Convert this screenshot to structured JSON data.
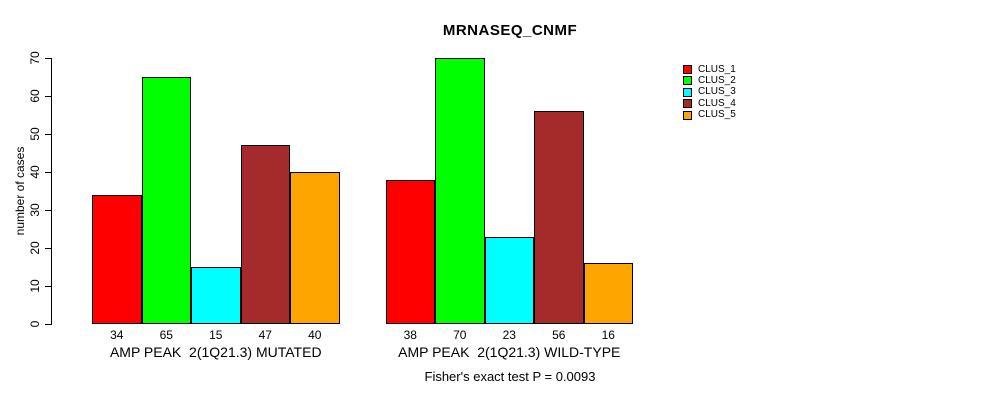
{
  "title": "MRNASEQ_CNMF",
  "y_axis": {
    "label": "number of cases",
    "ticks": [
      0,
      10,
      20,
      30,
      40,
      50,
      60,
      70
    ]
  },
  "caption": "Fisher's exact test P = 0.0093",
  "chart_data": {
    "type": "bar",
    "title": "MRNASEQ_CNMF",
    "xlabel": "",
    "ylabel": "number of cases",
    "ylim": [
      0,
      70
    ],
    "yticks": [
      0,
      10,
      20,
      30,
      40,
      50,
      60,
      70
    ],
    "grid": false,
    "legend_position": "right-outside",
    "categories": [
      "AMP PEAK  2(1Q21.3) MUTATED",
      "AMP PEAK  2(1Q21.3) WILD-TYPE"
    ],
    "series": [
      {
        "name": "CLUS_1",
        "color": "#FF0000",
        "values": [
          34,
          38
        ]
      },
      {
        "name": "CLUS_2",
        "color": "#00FF00",
        "values": [
          65,
          70
        ]
      },
      {
        "name": "CLUS_3",
        "color": "#00FFFF",
        "values": [
          15,
          23
        ]
      },
      {
        "name": "CLUS_4",
        "color": "#A52A2A",
        "values": [
          47,
          56
        ]
      },
      {
        "name": "CLUS_5",
        "color": "#FFA500",
        "values": [
          40,
          16
        ]
      }
    ],
    "bar_value_labels": {
      "group_1": [
        34,
        65,
        15,
        47,
        40
      ],
      "group_2": [
        38,
        70,
        23,
        56,
        16
      ]
    },
    "annotation": "Fisher's exact test P = 0.0093"
  }
}
